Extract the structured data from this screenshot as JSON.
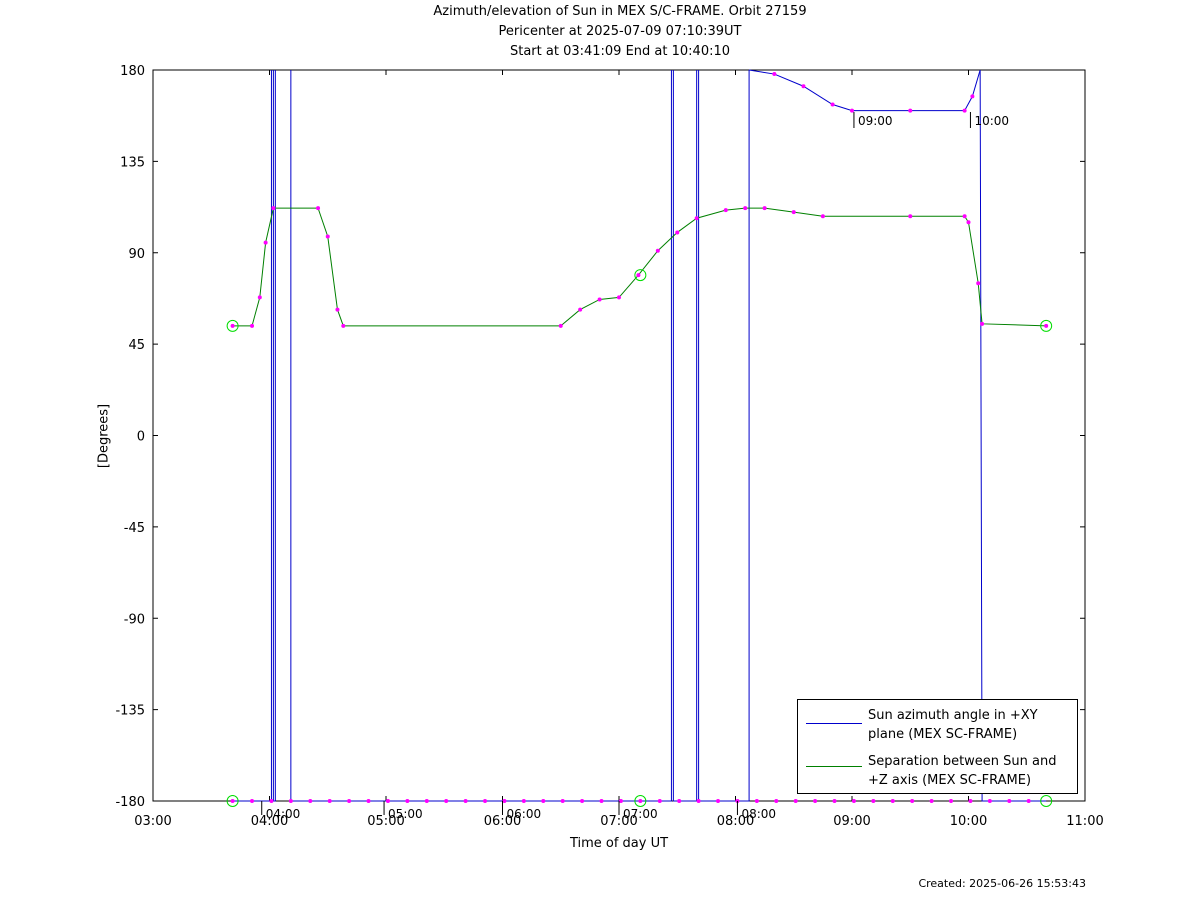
{
  "title": {
    "line1": "Azimuth/elevation of Sun in MEX S/C-FRAME.  Orbit 27159",
    "line2": "Pericenter at 2025-07-09 07:10:39UT",
    "line3": "Start at 03:41:09 End at 10:40:10"
  },
  "footer": {
    "created": "Created: 2025-06-26 15:53:43"
  },
  "colors": {
    "azimuth": "#0000cc",
    "separation": "#008000",
    "marker": "#ff00ff",
    "endpoint": "#00dd00"
  },
  "chart_data": {
    "type": "line",
    "title": "Azimuth/elevation of Sun in MEX S/C-FRAME.  Orbit 27159",
    "xlabel": "Time of day UT",
    "ylabel": "[Degrees]",
    "xlim": [
      "03:00",
      "11:00"
    ],
    "ylim": [
      -180,
      180
    ],
    "x_ticks": [
      "03:00",
      "04:00",
      "05:00",
      "06:00",
      "07:00",
      "08:00",
      "09:00",
      "10:00",
      "11:00"
    ],
    "y_ticks": [
      "180",
      "135",
      "90",
      "45",
      "0",
      "-45",
      "-90",
      "-135",
      "-180"
    ],
    "legend_position": "bottom-right",
    "annotations": [
      "04:00",
      "05:00",
      "06:00",
      "07:00",
      "08:00",
      "09:00",
      "10:00"
    ],
    "series": [
      {
        "name": "Sun azimuth angle in +XY plane (MEX SC-FRAME)",
        "segments": [
          [
            [
              "03:41",
              -180
            ],
            [
              "04:01",
              -180
            ],
            [
              "04:01",
              180
            ]
          ],
          [
            [
              "04:02",
              180
            ],
            [
              "04:02",
              -180
            ],
            [
              "04:03",
              -180
            ],
            [
              "04:03",
              180
            ]
          ],
          [
            [
              "04:11",
              180
            ],
            [
              "04:11",
              -180
            ],
            [
              "07:27",
              -180
            ],
            [
              "07:27",
              180
            ]
          ],
          [
            [
              "07:28",
              180
            ],
            [
              "07:28",
              -180
            ],
            [
              "07:40",
              -180
            ],
            [
              "07:40",
              180
            ]
          ],
          [
            [
              "07:41",
              180
            ],
            [
              "07:41",
              -180
            ],
            [
              "08:07",
              -180
            ],
            [
              "08:07",
              180
            ]
          ],
          [
            [
              "08:07",
              180
            ],
            [
              "08:20",
              178
            ],
            [
              "08:35",
              172
            ],
            [
              "08:50",
              163
            ],
            [
              "09:00",
              160
            ],
            [
              "09:30",
              160
            ],
            [
              "09:58",
              160
            ],
            [
              "10:02",
              167
            ],
            [
              "10:06",
              180
            ]
          ],
          [
            [
              "10:06",
              180
            ],
            [
              "10:07",
              -180
            ],
            [
              "10:40",
              -180
            ]
          ]
        ]
      },
      {
        "name": "Separation between Sun and +Z axis (MEX SC-FRAME)",
        "points": [
          [
            "03:41",
            54
          ],
          [
            "03:51",
            54
          ],
          [
            "03:55",
            68
          ],
          [
            "03:58",
            95
          ],
          [
            "04:02",
            112
          ],
          [
            "04:25",
            112
          ],
          [
            "04:30",
            98
          ],
          [
            "04:35",
            62
          ],
          [
            "04:38",
            54
          ],
          [
            "06:30",
            54
          ],
          [
            "06:40",
            62
          ],
          [
            "06:50",
            67
          ],
          [
            "07:00",
            68
          ],
          [
            "07:10",
            79
          ],
          [
            "07:20",
            91
          ],
          [
            "07:30",
            100
          ],
          [
            "07:40",
            107
          ],
          [
            "07:55",
            111
          ],
          [
            "08:05",
            112
          ],
          [
            "08:15",
            112
          ],
          [
            "08:30",
            110
          ],
          [
            "08:45",
            108
          ],
          [
            "09:30",
            108
          ],
          [
            "09:58",
            108
          ],
          [
            "10:00",
            105
          ],
          [
            "10:05",
            75
          ],
          [
            "10:07",
            55
          ],
          [
            "10:40",
            54
          ]
        ]
      }
    ]
  }
}
